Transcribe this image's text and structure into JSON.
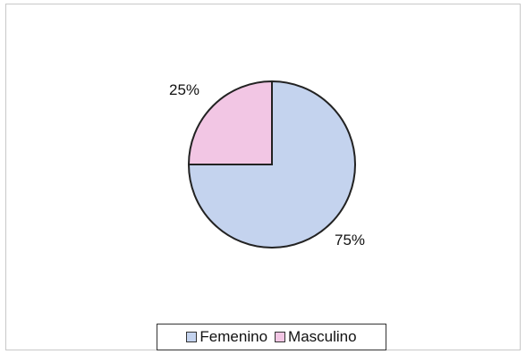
{
  "chart_data": {
    "type": "pie",
    "title": "",
    "categories": [
      "Femenino",
      "Masculino"
    ],
    "values": [
      75,
      25
    ],
    "data_labels": [
      "75%",
      "25%"
    ],
    "start_angle_deg": 0,
    "direction": "clockwise",
    "legend_position": "bottom",
    "colors": {
      "Femenino": "#c4d3ee",
      "Masculino": "#f2c6e4"
    }
  }
}
